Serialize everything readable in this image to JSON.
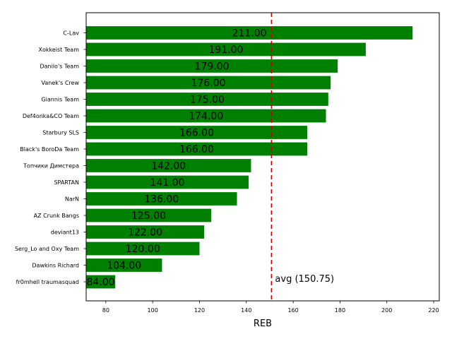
{
  "chart_data": {
    "type": "bar",
    "orientation": "horizontal",
    "xlabel": "REB",
    "xlim": [
      71.6,
      222.4
    ],
    "xticks": [
      80,
      100,
      120,
      140,
      160,
      180,
      200,
      220
    ],
    "bar_color": "#008000",
    "avg_line_color": "#cc0000",
    "categories": [
      "C-Lav",
      "Xokkeist Team",
      "Danilo's Team",
      "Vanek's Crew",
      "Giannis Team",
      "Def4onka&CO Team",
      "Starbury SLS",
      "Black's BoroDa Team",
      "Топчики Димстера",
      "SPARTAN",
      "NarN",
      "AZ Crunk Bangs",
      "deviant13",
      "Serg_Lo and Oxy Team",
      "Dawkins Richard",
      "fr0mhell traumasquad"
    ],
    "values": [
      211,
      191,
      179,
      176,
      175,
      174,
      166,
      166,
      142,
      141,
      136,
      125,
      122,
      120,
      104,
      84
    ],
    "value_labels": [
      "211.00",
      "191.00",
      "179.00",
      "176.00",
      "175.00",
      "174.00",
      "166.00",
      "166.00",
      "142.00",
      "141.00",
      "136.00",
      "125.00",
      "122.00",
      "120.00",
      "104.00",
      "84.00"
    ],
    "average": 150.75,
    "average_label": "avg (150.75)"
  }
}
